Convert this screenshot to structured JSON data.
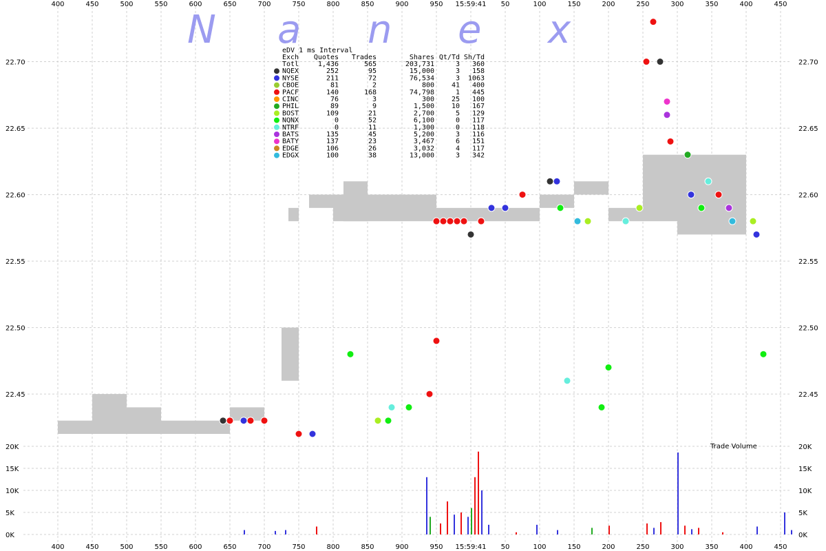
{
  "chart_data": {
    "type": "scatter",
    "watermark": [
      "N",
      "a",
      "n",
      "e",
      "x"
    ],
    "time_label": "15:59:41",
    "x_ticks": [
      "400",
      "450",
      "500",
      "550",
      "600",
      "650",
      "700",
      "750",
      "800",
      "850",
      "900",
      "950",
      "15:59:41",
      "50",
      "100",
      "150",
      "200",
      "250",
      "300",
      "350",
      "400",
      "450"
    ],
    "price_axis": {
      "ylim": [
        22.42,
        22.735
      ],
      "ticks": [
        22.45,
        22.5,
        22.55,
        22.6,
        22.65,
        22.7
      ],
      "tick_labels": [
        "22.45",
        "22.50",
        "22.55",
        "22.60",
        "22.65",
        "22.70"
      ]
    },
    "volume_axis": {
      "label": "Trade Volume",
      "ylim": [
        0,
        20000
      ],
      "ticks": [
        0,
        5000,
        10000,
        15000,
        20000
      ],
      "tick_labels": [
        "0K",
        "5K",
        "10K",
        "15K",
        "20K"
      ]
    },
    "table": {
      "title": "eDV 1 ms Interval",
      "headers": [
        "Exch",
        "Quotes",
        "Trades",
        "Shares",
        "Qt/Td",
        "Sh/Td"
      ],
      "rows": [
        {
          "exch": "Totl",
          "quotes": "1,436",
          "trades": "565",
          "shares": "203,731",
          "qt_td": "3",
          "sh_td": "360",
          "color": ""
        },
        {
          "exch": "NQEX",
          "quotes": "252",
          "trades": "95",
          "shares": "15,000",
          "qt_td": "3",
          "sh_td": "158",
          "color": "#333333"
        },
        {
          "exch": "NYSE",
          "quotes": "211",
          "trades": "72",
          "shares": "76,534",
          "qt_td": "3",
          "sh_td": "1063",
          "color": "#3333dd"
        },
        {
          "exch": "CBOE",
          "quotes": "81",
          "trades": "2",
          "shares": "800",
          "qt_td": "41",
          "sh_td": "400",
          "color": "#99cc33"
        },
        {
          "exch": "PACF",
          "quotes": "140",
          "trades": "168",
          "shares": "74,798",
          "qt_td": "1",
          "sh_td": "445",
          "color": "#ee1111"
        },
        {
          "exch": "CINC",
          "quotes": "76",
          "trades": "3",
          "shares": "300",
          "qt_td": "25",
          "sh_td": "100",
          "color": "#ff9900"
        },
        {
          "exch": "PHIL",
          "quotes": "89",
          "trades": "9",
          "shares": "1,500",
          "qt_td": "10",
          "sh_td": "167",
          "color": "#22aa22"
        },
        {
          "exch": "BOST",
          "quotes": "109",
          "trades": "21",
          "shares": "2,700",
          "qt_td": "5",
          "sh_td": "129",
          "color": "#aaee22"
        },
        {
          "exch": "NQNX",
          "quotes": "0",
          "trades": "52",
          "shares": "6,100",
          "qt_td": "0",
          "sh_td": "117",
          "color": "#11ee11"
        },
        {
          "exch": "NTRF",
          "quotes": "0",
          "trades": "11",
          "shares": "1,300",
          "qt_td": "0",
          "sh_td": "118",
          "color": "#66eedd"
        },
        {
          "exch": "BATS",
          "quotes": "135",
          "trades": "45",
          "shares": "5,200",
          "qt_td": "3",
          "sh_td": "116",
          "color": "#aa33dd"
        },
        {
          "exch": "BATY",
          "quotes": "137",
          "trades": "23",
          "shares": "3,467",
          "qt_td": "6",
          "sh_td": "151",
          "color": "#ee33cc"
        },
        {
          "exch": "EDGE",
          "quotes": "106",
          "trades": "26",
          "shares": "3,032",
          "qt_td": "4",
          "sh_td": "117",
          "color": "#cc8822"
        },
        {
          "exch": "EDGX",
          "quotes": "100",
          "trades": "38",
          "shares": "13,000",
          "qt_td": "3",
          "sh_td": "342",
          "color": "#33bbdd"
        }
      ]
    },
    "nbbo_band": [
      [
        0,
        0,
        22.42,
        22.43
      ],
      [
        1,
        0,
        22.42,
        22.45
      ],
      [
        2,
        0,
        22.42,
        22.44
      ],
      [
        3,
        0,
        22.42,
        22.43
      ],
      [
        4,
        0,
        22.42,
        22.43
      ],
      [
        5,
        0,
        22.43,
        22.44
      ],
      [
        6,
        0.5,
        22.46,
        22.5
      ],
      [
        6,
        0.7,
        22.58,
        22.59
      ],
      [
        7,
        0.3,
        22.59,
        22.6
      ],
      [
        8,
        0,
        22.58,
        22.6
      ],
      [
        8,
        0.3,
        22.58,
        22.61
      ],
      [
        9,
        0,
        22.58,
        22.6
      ],
      [
        10,
        0,
        22.58,
        22.6
      ],
      [
        11,
        0,
        22.58,
        22.59
      ],
      [
        12,
        0,
        22.58,
        22.59
      ],
      [
        13,
        0,
        22.58,
        22.59
      ],
      [
        14,
        0,
        22.59,
        22.6
      ],
      [
        15,
        0,
        22.6,
        22.61
      ],
      [
        16,
        0,
        22.58,
        22.59
      ],
      [
        17,
        0,
        22.58,
        22.63
      ],
      [
        18,
        0,
        22.57,
        22.63
      ],
      [
        19,
        0,
        22.57,
        22.63
      ]
    ],
    "trades_price": [
      [
        4,
        0.8,
        22.43,
        "#333333"
      ],
      [
        4,
        1.0,
        22.43,
        "#ee1111"
      ],
      [
        5,
        0.4,
        22.43,
        "#3333dd"
      ],
      [
        5,
        0.6,
        22.43,
        "#ee1111"
      ],
      [
        5,
        1.0,
        22.43,
        "#ee1111"
      ],
      [
        6,
        1.0,
        22.42,
        "#ee1111"
      ],
      [
        7,
        0.4,
        22.42,
        "#3333dd"
      ],
      [
        8,
        0.5,
        22.48,
        "#11ee11"
      ],
      [
        9,
        0.3,
        22.43,
        "#aaee22"
      ],
      [
        9,
        0.6,
        22.43,
        "#11ee11"
      ],
      [
        9,
        0.7,
        22.44,
        "#66eedd"
      ],
      [
        10,
        0.2,
        22.44,
        "#11ee11"
      ],
      [
        10,
        0.8,
        22.45,
        "#ee1111"
      ],
      [
        10,
        1.0,
        22.49,
        "#ee1111"
      ],
      [
        11,
        0.0,
        22.58,
        "#ee1111"
      ],
      [
        11,
        0.2,
        22.58,
        "#ee1111"
      ],
      [
        11,
        0.4,
        22.58,
        "#ee1111"
      ],
      [
        11,
        0.6,
        22.58,
        "#ee1111"
      ],
      [
        11,
        0.8,
        22.58,
        "#ee1111"
      ],
      [
        11,
        1.0,
        22.57,
        "#333333"
      ],
      [
        12,
        0.3,
        22.58,
        "#ee1111"
      ],
      [
        12,
        0.6,
        22.59,
        "#3333dd"
      ],
      [
        13,
        0.0,
        22.59,
        "#3333dd"
      ],
      [
        13,
        0.5,
        22.6,
        "#ee1111"
      ],
      [
        14,
        0.3,
        22.61,
        "#333333"
      ],
      [
        14,
        0.5,
        22.61,
        "#3333dd"
      ],
      [
        14,
        0.6,
        22.59,
        "#11ee11"
      ],
      [
        14,
        0.8,
        22.46,
        "#66eedd"
      ],
      [
        15,
        0.1,
        22.58,
        "#33bbdd"
      ],
      [
        15,
        0.4,
        22.58,
        "#aaee22"
      ],
      [
        15,
        0.8,
        22.44,
        "#11ee11"
      ],
      [
        15,
        1.0,
        22.47,
        "#11ee11"
      ],
      [
        16,
        0.5,
        22.58,
        "#66eedd"
      ],
      [
        16,
        0.9,
        22.59,
        "#aaee22"
      ],
      [
        17,
        0.1,
        22.7,
        "#ee1111"
      ],
      [
        17,
        0.3,
        22.73,
        "#ee1111"
      ],
      [
        17,
        0.5,
        22.7,
        "#333333"
      ],
      [
        17,
        0.7,
        22.67,
        "#ee33cc"
      ],
      [
        17,
        0.7,
        22.66,
        "#aa33dd"
      ],
      [
        17,
        0.8,
        22.64,
        "#ee1111"
      ],
      [
        18,
        0.3,
        22.63,
        "#22aa22"
      ],
      [
        18,
        0.4,
        22.6,
        "#3333dd"
      ],
      [
        18,
        0.7,
        22.59,
        "#11ee11"
      ],
      [
        18,
        0.9,
        22.61,
        "#66eedd"
      ],
      [
        19,
        0.2,
        22.6,
        "#ee1111"
      ],
      [
        19,
        0.5,
        22.59,
        "#aa33dd"
      ],
      [
        19,
        0.6,
        22.58,
        "#33bbdd"
      ],
      [
        20,
        0.2,
        22.58,
        "#aaee22"
      ],
      [
        20,
        0.3,
        22.57,
        "#3333dd"
      ],
      [
        20,
        0.5,
        22.48,
        "#11ee11"
      ]
    ],
    "volume_bars": [
      [
        5,
        0.4,
        1000,
        "#3333dd"
      ],
      [
        6,
        0.3,
        800,
        "#3333dd"
      ],
      [
        6,
        0.6,
        1000,
        "#3333dd"
      ],
      [
        7,
        0.5,
        1800,
        "#ee1111"
      ],
      [
        10,
        0.7,
        13000,
        "#3333dd"
      ],
      [
        10,
        0.8,
        4000,
        "#22aa22"
      ],
      [
        11,
        0.1,
        2500,
        "#ee1111"
      ],
      [
        11,
        0.3,
        7500,
        "#ee1111"
      ],
      [
        11,
        0.5,
        4500,
        "#3333dd"
      ],
      [
        11,
        0.7,
        5000,
        "#ee1111"
      ],
      [
        11,
        0.9,
        4000,
        "#3333dd"
      ],
      [
        12,
        0.0,
        6000,
        "#22aa22"
      ],
      [
        12,
        0.1,
        13000,
        "#ee1111"
      ],
      [
        12,
        0.2,
        18800,
        "#ee1111"
      ],
      [
        12,
        0.3,
        10000,
        "#3333dd"
      ],
      [
        12,
        0.5,
        2200,
        "#3333dd"
      ],
      [
        13,
        0.3,
        500,
        "#ee1111"
      ],
      [
        13,
        0.9,
        2200,
        "#3333dd"
      ],
      [
        14,
        0.5,
        1000,
        "#3333dd"
      ],
      [
        15,
        0.5,
        1500,
        "#22aa22"
      ],
      [
        16,
        0.0,
        2000,
        "#ee1111"
      ],
      [
        17,
        0.1,
        2500,
        "#ee1111"
      ],
      [
        17,
        0.3,
        1500,
        "#3333dd"
      ],
      [
        17,
        0.5,
        2800,
        "#ee1111"
      ],
      [
        18,
        0.0,
        18600,
        "#3333dd"
      ],
      [
        18,
        0.2,
        2000,
        "#ee1111"
      ],
      [
        18,
        0.4,
        1200,
        "#3333dd"
      ],
      [
        18,
        0.6,
        1500,
        "#ee1111"
      ],
      [
        19,
        0.3,
        500,
        "#ee1111"
      ],
      [
        20,
        0.3,
        1800,
        "#3333dd"
      ],
      [
        21,
        0.1,
        5000,
        "#3333dd"
      ],
      [
        21,
        0.3,
        1000,
        "#3333dd"
      ]
    ]
  }
}
